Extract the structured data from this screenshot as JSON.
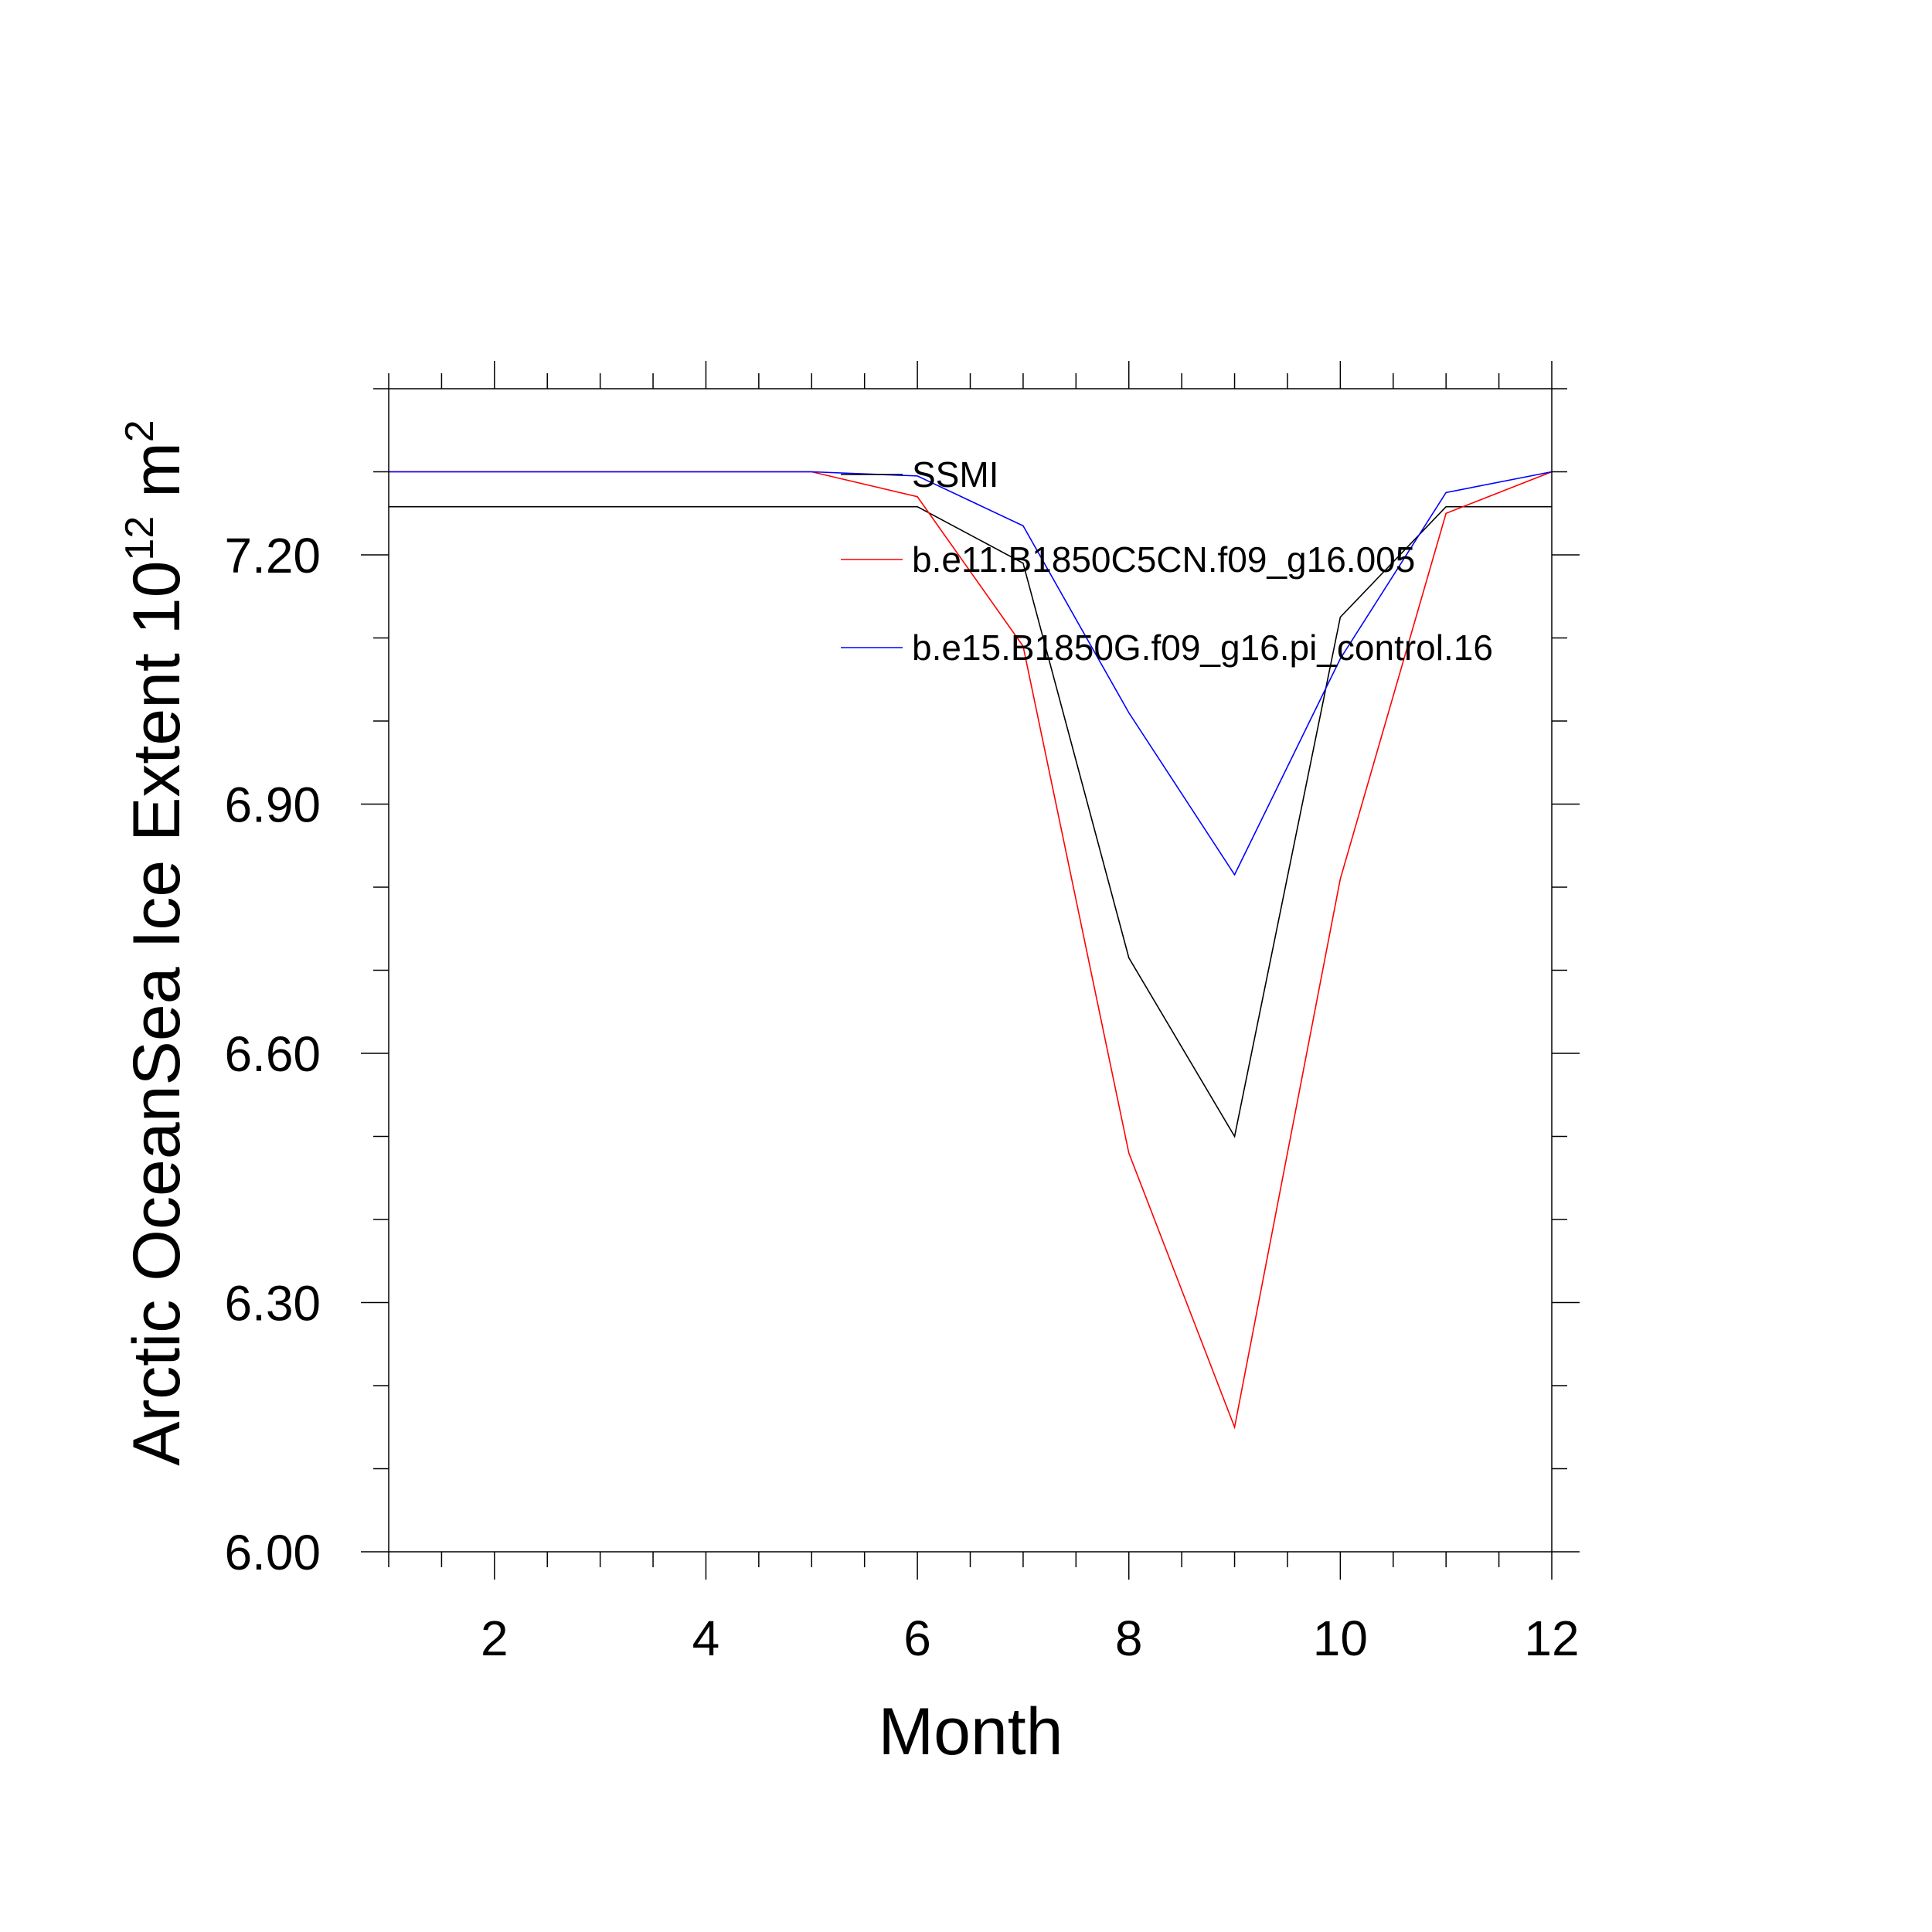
{
  "chart_data": {
    "type": "line",
    "xlabel": "Month",
    "ylabel": {
      "main": "Arctic OceanSea Ice Extent 10",
      "exp1": "12",
      "unit": " m",
      "exp2": "2"
    },
    "xlim": [
      1,
      12
    ],
    "ylim": [
      6.0,
      7.4
    ],
    "x_ticks": [
      2,
      4,
      6,
      8,
      10,
      12
    ],
    "x_tick_labels": [
      "2",
      "4",
      "6",
      "8",
      "10",
      "12"
    ],
    "y_ticks": [
      6.0,
      6.3,
      6.6,
      6.9,
      7.2
    ],
    "y_tick_labels": [
      "6.00",
      "6.30",
      "6.60",
      "6.90",
      "7.20"
    ],
    "grid": false,
    "legend_position": "top-right (inside)",
    "x": [
      1,
      2,
      3,
      4,
      5,
      6,
      7,
      8,
      9,
      10,
      11,
      12
    ],
    "series": [
      {
        "name": "SSMI",
        "color": "#000000",
        "values": [
          7.258,
          7.258,
          7.258,
          7.258,
          7.258,
          7.258,
          7.19,
          6.715,
          6.5,
          7.125,
          7.258,
          7.258
        ]
      },
      {
        "name": "b.e11.B1850C5CN.f09_g16.005",
        "color": "#ff0000",
        "values": [
          7.3,
          7.3,
          7.3,
          7.3,
          7.3,
          7.27,
          7.09,
          6.48,
          6.15,
          6.81,
          7.25,
          7.3
        ]
      },
      {
        "name": "b.e15.B1850G.f09_g16.pi_control.16",
        "color": "#0000ff",
        "values": [
          7.3,
          7.3,
          7.3,
          7.3,
          7.3,
          7.295,
          7.235,
          7.01,
          6.815,
          7.075,
          7.275,
          7.3
        ]
      }
    ]
  }
}
